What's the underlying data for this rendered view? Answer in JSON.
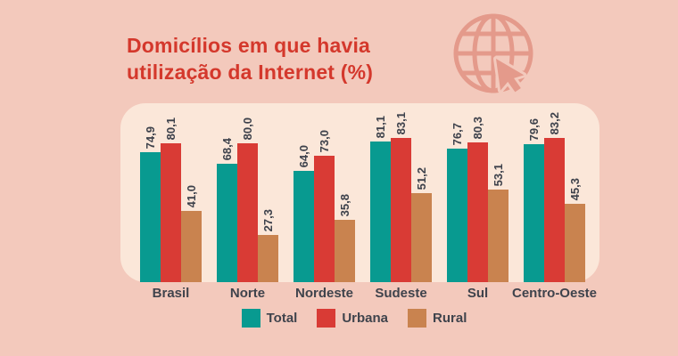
{
  "page": {
    "background_color": "#f3c9bc",
    "panel_color": "#fbe7d9"
  },
  "header": {
    "title_line1": "Domicílios em que havia",
    "title_line2": "utilização da Internet (%)",
    "title_color": "#d4382c",
    "icon": "globe-with-cursor-icon",
    "icon_color": "#e49a8b"
  },
  "chart_data": {
    "type": "bar",
    "title": "Domicílios em que havia utilização da Internet (%)",
    "categories": [
      "Brasil",
      "Norte",
      "Nordeste",
      "Sudeste",
      "Sul",
      "Centro-Oeste"
    ],
    "series": [
      {
        "name": "Total",
        "color": "#089a90",
        "values": [
          74.9,
          68.4,
          64.0,
          81.1,
          76.7,
          79.6
        ],
        "labels": [
          "74,9",
          "68,4",
          "64,0",
          "81,1",
          "76,7",
          "79,6"
        ]
      },
      {
        "name": "Urbana",
        "color": "#d93b35",
        "values": [
          80.1,
          80.0,
          73.0,
          83.1,
          80.3,
          83.2
        ],
        "labels": [
          "80,1",
          "80,0",
          "73,0",
          "83,1",
          "80,3",
          "83,2"
        ]
      },
      {
        "name": "Rural",
        "color": "#c9834f",
        "values": [
          41.0,
          27.3,
          35.8,
          51.2,
          53.1,
          45.3
        ],
        "labels": [
          "41,0",
          "27,3",
          "35,8",
          "51,2",
          "53,1",
          "45,3"
        ]
      }
    ],
    "ylim": [
      0,
      100
    ],
    "grid": false,
    "legend_position": "bottom",
    "value_label_color": "#3d414b",
    "category_label_color": "#3f434c"
  },
  "legend": {
    "items": [
      {
        "label": "Total",
        "color": "#089a90"
      },
      {
        "label": "Urbana",
        "color": "#d93b35"
      },
      {
        "label": "Rural",
        "color": "#c9834f"
      }
    ]
  }
}
